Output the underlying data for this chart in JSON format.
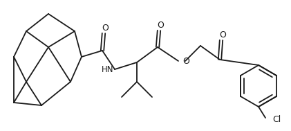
{
  "bg_color": "#ffffff",
  "line_color": "#1a1a1a",
  "line_width": 1.3,
  "figsize": [
    4.21,
    1.89
  ],
  "dpi": 100,
  "xlim": [
    0,
    421
  ],
  "ylim": [
    0,
    189
  ]
}
